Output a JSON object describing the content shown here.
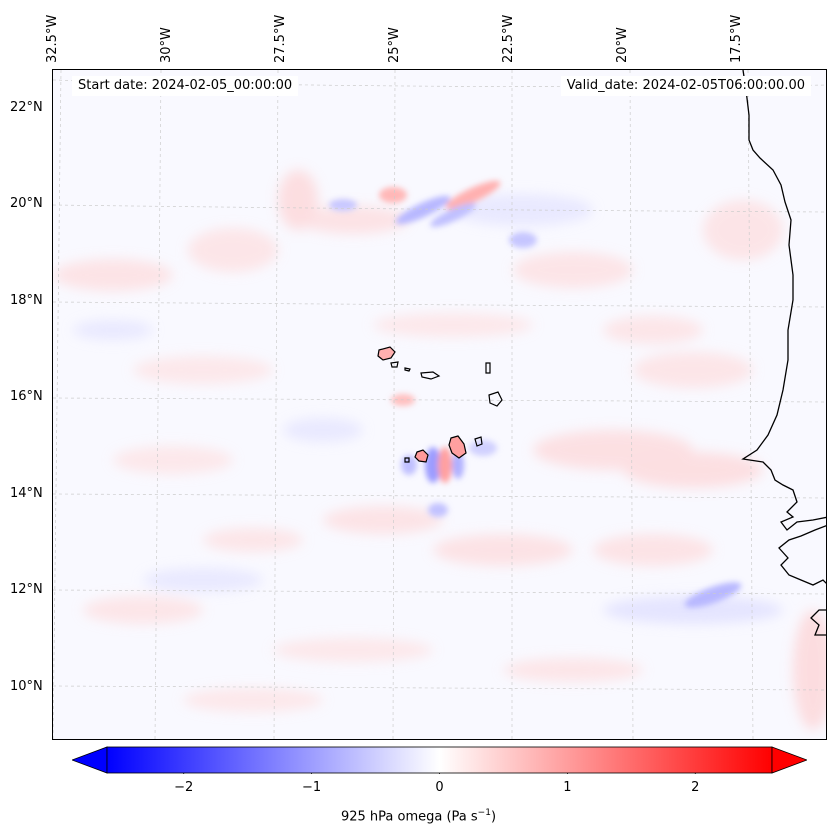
{
  "map": {
    "start_date": "Start date: 2024-02-05_00:00:00",
    "valid_date": "Valid_date: 2024-02-05T06:00:00.00",
    "lon_labels": [
      "32.5°W",
      "30°W",
      "27.5°W",
      "25°W",
      "22.5°W",
      "20°W",
      "17.5°W"
    ],
    "lat_labels": [
      "22°N",
      "20°N",
      "18°N",
      "16°N",
      "14°N",
      "12°N",
      "10°N"
    ],
    "lon_values": [
      -32.5,
      -30,
      -27.5,
      -25,
      -22.5,
      -20,
      -17.5
    ],
    "lat_values": [
      22,
      20,
      18,
      16,
      14,
      12,
      10
    ],
    "extent": {
      "lon_min": -32.5,
      "lon_max": -15.5,
      "lat_min": 8.9,
      "lat_max": 22.8
    },
    "field": "925 hPa omega",
    "colormap": "bwr",
    "colors": {
      "negative": "#0000ff",
      "zero": "#ffffff",
      "positive": "#ff0000",
      "coastline": "#000000"
    }
  },
  "colorbar": {
    "label_prefix": "925 hPa omega (Pa s",
    "label_exp": "−1",
    "label_suffix": ")",
    "range": [
      -2.6,
      2.6
    ],
    "ticks": [
      {
        "value": -2,
        "label": "−2"
      },
      {
        "value": -1,
        "label": "−1"
      },
      {
        "value": 0,
        "label": "0"
      },
      {
        "value": 1,
        "label": "1"
      },
      {
        "value": 2,
        "label": "2"
      }
    ],
    "extend": "both"
  }
}
